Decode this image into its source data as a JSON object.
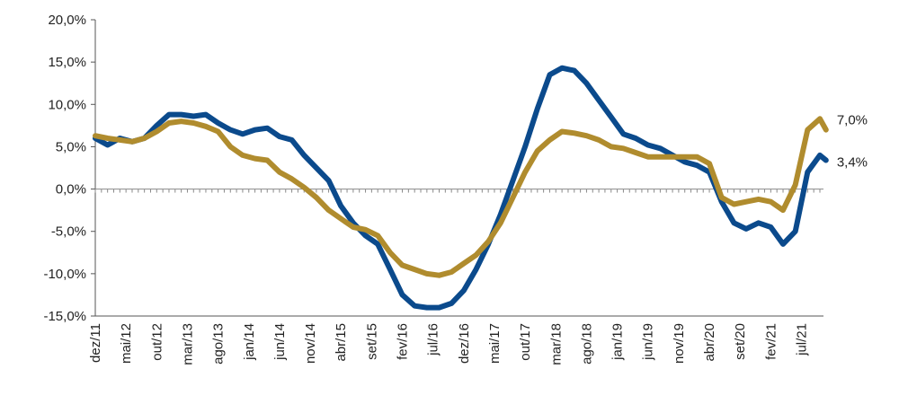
{
  "chart_data": {
    "type": "line",
    "title": "",
    "xlabel": "",
    "ylabel": "",
    "ylim": [
      -15,
      20
    ],
    "y_ticks": [
      "-15,0%",
      "-10,0%",
      "-5,0%",
      "0,0%",
      "5,0%",
      "10,0%",
      "15,0%",
      "20,0%"
    ],
    "y_tick_values": [
      -15,
      -10,
      -5,
      0,
      5,
      10,
      15,
      20
    ],
    "x_ticks": [
      "dez/11",
      "mai/12",
      "out/12",
      "mar/13",
      "ago/13",
      "jan/14",
      "jun/14",
      "nov/14",
      "abr/15",
      "set/15",
      "fev/16",
      "jul/16",
      "dez/16",
      "mai/17",
      "out/17",
      "mar/18",
      "ago/18",
      "jan/19",
      "jun/19",
      "nov/19",
      "abr/20",
      "set/20",
      "fev/21",
      "jul/21"
    ],
    "x_tick_index": [
      0,
      5,
      10,
      15,
      20,
      25,
      30,
      35,
      40,
      45,
      50,
      55,
      60,
      65,
      70,
      75,
      80,
      85,
      90,
      95,
      100,
      105,
      110,
      115
    ],
    "x_count": 119,
    "grid": false,
    "series": [
      {
        "color": "#0b4a8c",
        "end_label": "3,4%",
        "points": [
          [
            0,
            6.0
          ],
          [
            2,
            5.2
          ],
          [
            4,
            6.0
          ],
          [
            6,
            5.6
          ],
          [
            8,
            6.0
          ],
          [
            10,
            7.5
          ],
          [
            12,
            8.8
          ],
          [
            14,
            8.8
          ],
          [
            16,
            8.6
          ],
          [
            18,
            8.8
          ],
          [
            20,
            7.8
          ],
          [
            22,
            7.0
          ],
          [
            24,
            6.5
          ],
          [
            26,
            7.0
          ],
          [
            28,
            7.2
          ],
          [
            30,
            6.2
          ],
          [
            32,
            5.8
          ],
          [
            34,
            4.0
          ],
          [
            36,
            2.5
          ],
          [
            38,
            1.0
          ],
          [
            40,
            -2.0
          ],
          [
            42,
            -4.0
          ],
          [
            44,
            -5.5
          ],
          [
            46,
            -6.5
          ],
          [
            48,
            -9.5
          ],
          [
            50,
            -12.5
          ],
          [
            52,
            -13.8
          ],
          [
            54,
            -14.0
          ],
          [
            56,
            -14.0
          ],
          [
            58,
            -13.5
          ],
          [
            60,
            -12.0
          ],
          [
            62,
            -9.5
          ],
          [
            64,
            -6.5
          ],
          [
            66,
            -3.0
          ],
          [
            68,
            1.0
          ],
          [
            70,
            5.0
          ],
          [
            72,
            9.5
          ],
          [
            74,
            13.5
          ],
          [
            76,
            14.3
          ],
          [
            78,
            14.0
          ],
          [
            80,
            12.5
          ],
          [
            82,
            10.5
          ],
          [
            84,
            8.5
          ],
          [
            86,
            6.5
          ],
          [
            88,
            6.0
          ],
          [
            90,
            5.2
          ],
          [
            92,
            4.8
          ],
          [
            94,
            4.0
          ],
          [
            96,
            3.2
          ],
          [
            98,
            2.8
          ],
          [
            100,
            2.0
          ],
          [
            102,
            -1.5
          ],
          [
            104,
            -4.0
          ],
          [
            106,
            -4.7
          ],
          [
            108,
            -4.0
          ],
          [
            110,
            -4.5
          ],
          [
            112,
            -6.5
          ],
          [
            114,
            -5.0
          ],
          [
            116,
            2.0
          ],
          [
            118,
            4.0
          ],
          [
            119,
            3.4
          ]
        ]
      },
      {
        "color": "#b08c2e",
        "end_label": "7,0%",
        "points": [
          [
            0,
            6.3
          ],
          [
            2,
            6.0
          ],
          [
            4,
            5.8
          ],
          [
            6,
            5.6
          ],
          [
            8,
            6.0
          ],
          [
            10,
            6.8
          ],
          [
            12,
            7.8
          ],
          [
            14,
            8.0
          ],
          [
            16,
            7.8
          ],
          [
            18,
            7.4
          ],
          [
            20,
            6.8
          ],
          [
            22,
            5.0
          ],
          [
            24,
            4.0
          ],
          [
            26,
            3.6
          ],
          [
            28,
            3.4
          ],
          [
            30,
            2.0
          ],
          [
            32,
            1.2
          ],
          [
            34,
            0.2
          ],
          [
            36,
            -1.0
          ],
          [
            38,
            -2.5
          ],
          [
            40,
            -3.5
          ],
          [
            42,
            -4.5
          ],
          [
            44,
            -4.8
          ],
          [
            46,
            -5.5
          ],
          [
            48,
            -7.5
          ],
          [
            50,
            -9.0
          ],
          [
            52,
            -9.5
          ],
          [
            54,
            -10.0
          ],
          [
            56,
            -10.2
          ],
          [
            58,
            -9.8
          ],
          [
            60,
            -8.8
          ],
          [
            62,
            -7.8
          ],
          [
            64,
            -6.2
          ],
          [
            66,
            -4.0
          ],
          [
            68,
            -1.0
          ],
          [
            70,
            2.0
          ],
          [
            72,
            4.5
          ],
          [
            74,
            5.8
          ],
          [
            76,
            6.8
          ],
          [
            78,
            6.6
          ],
          [
            80,
            6.3
          ],
          [
            82,
            5.8
          ],
          [
            84,
            5.0
          ],
          [
            86,
            4.8
          ],
          [
            88,
            4.3
          ],
          [
            90,
            3.8
          ],
          [
            92,
            3.8
          ],
          [
            94,
            3.8
          ],
          [
            96,
            3.8
          ],
          [
            98,
            3.8
          ],
          [
            100,
            3.0
          ],
          [
            102,
            -1.0
          ],
          [
            104,
            -1.8
          ],
          [
            106,
            -1.5
          ],
          [
            108,
            -1.2
          ],
          [
            110,
            -1.5
          ],
          [
            112,
            -2.5
          ],
          [
            114,
            0.5
          ],
          [
            116,
            7.0
          ],
          [
            118,
            8.3
          ],
          [
            119,
            7.0
          ]
        ]
      }
    ]
  }
}
